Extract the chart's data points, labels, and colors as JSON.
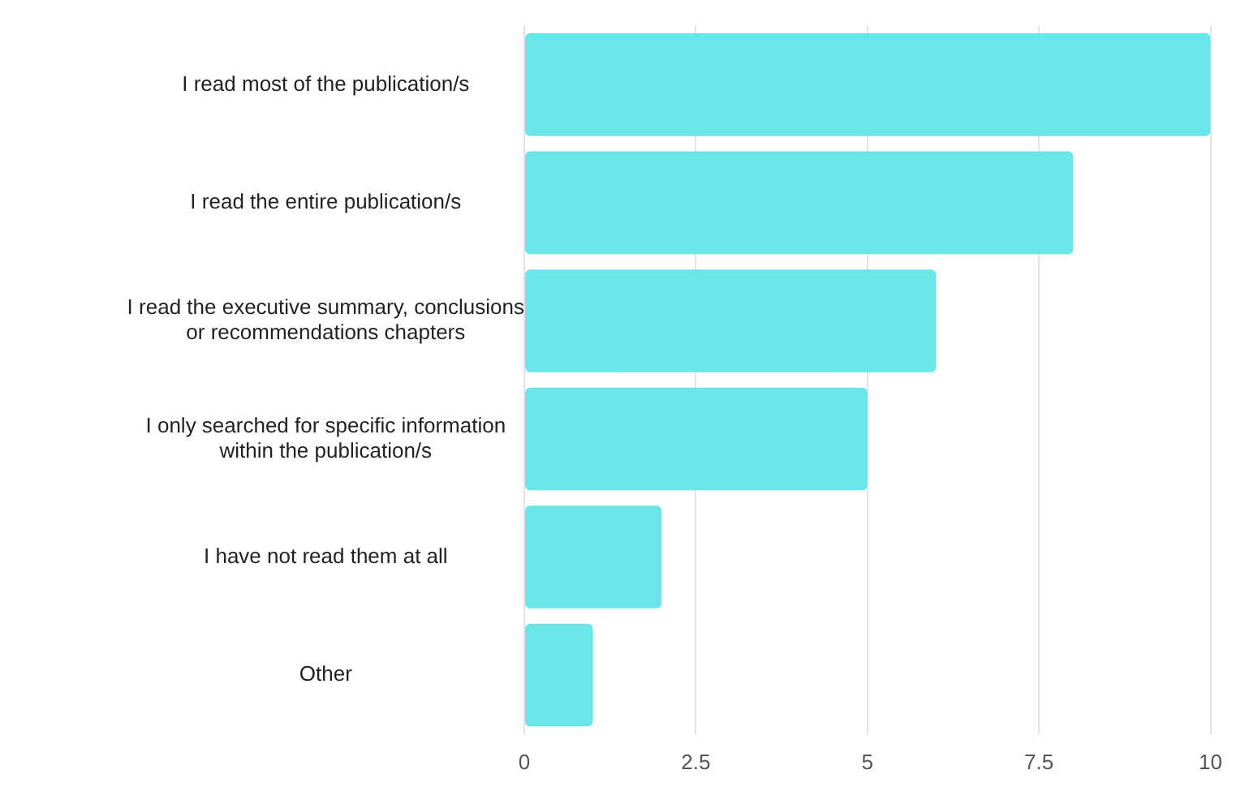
{
  "chart_data": {
    "type": "bar",
    "orientation": "horizontal",
    "categories": [
      "I read most of the publication/s",
      "I read the entire publication/s",
      "I read the executive summary, conclusions or recommendations chapters",
      "I only searched for specific information within the publication/s",
      "I have not read them at all",
      "Other"
    ],
    "values": [
      10,
      8,
      6,
      5,
      2,
      1
    ],
    "color": "#6ce5e8",
    "xlim": [
      0,
      10
    ],
    "xticks": [
      0,
      2.5,
      5,
      7.5,
      10
    ],
    "grid": "x",
    "legend": false
  }
}
